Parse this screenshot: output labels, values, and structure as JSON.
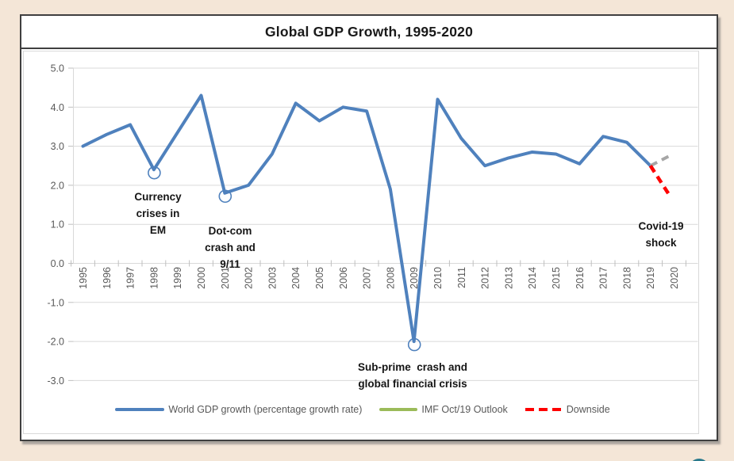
{
  "page": {
    "background_color": "#F4E6D7",
    "frame_border_color": "#3f3f3f"
  },
  "chart": {
    "title": "Global GDP Growth, 1995-2020"
  },
  "chart_data": {
    "type": "line",
    "title": "Global GDP Growth, 1995-2020",
    "xlabel": "",
    "ylabel": "",
    "ylim": [
      -3.0,
      5.0
    ],
    "ytick_step": 1.0,
    "ytick_labels": [
      "5.0",
      "4.0",
      "3.0",
      "2.0",
      "1.0",
      "0.0",
      "-1.0",
      "-2.0",
      "-3.0"
    ],
    "grid": true,
    "gridline_color": "#d9d9d9",
    "axis_label_color": "#595959",
    "legend_position": "bottom",
    "categories": [
      1995,
      1996,
      1997,
      1998,
      1999,
      2000,
      2001,
      2002,
      2003,
      2004,
      2005,
      2006,
      2007,
      2008,
      2009,
      2010,
      2011,
      2012,
      2013,
      2014,
      2015,
      2016,
      2017,
      2018,
      2019,
      2020
    ],
    "series": [
      {
        "name": "World GDP growth (percentage growth rate)",
        "color": "#4F81BD",
        "style": "solid",
        "years": [
          1995,
          1996,
          1997,
          1998,
          1999,
          2000,
          2001,
          2002,
          2003,
          2004,
          2005,
          2006,
          2007,
          2008,
          2009,
          2010,
          2011,
          2012,
          2013,
          2014,
          2015,
          2016,
          2017,
          2018,
          2019
        ],
        "values": [
          3.0,
          3.3,
          3.55,
          2.4,
          3.35,
          4.3,
          1.8,
          2.0,
          2.8,
          4.1,
          3.65,
          4.0,
          3.9,
          1.9,
          -2.0,
          4.2,
          3.2,
          2.5,
          2.7,
          2.85,
          2.8,
          2.55,
          3.25,
          3.1,
          2.5
        ]
      },
      {
        "name": "IMF Oct/19 Outlook",
        "legend_color": "#9BBB59",
        "plot_color": "#A6A6A6",
        "style": "dashed",
        "years": [
          2019,
          2020
        ],
        "values": [
          2.5,
          2.75
        ]
      },
      {
        "name": "Downside",
        "legend_color": "#FE0000",
        "plot_color": "#FE0000",
        "style": "dashed",
        "years": [
          2019,
          2020
        ],
        "values": [
          2.5,
          1.75
        ]
      }
    ],
    "markers": [
      {
        "year": 1998,
        "value": 2.4,
        "shape": "open-circle"
      },
      {
        "year": 2001,
        "value": 1.8,
        "shape": "open-circle"
      },
      {
        "year": 2009,
        "value": -2.0,
        "shape": "open-circle"
      }
    ]
  },
  "annotations": [
    {
      "id": "currency-crises",
      "lines": [
        "Currency",
        "crises in",
        "EM"
      ]
    },
    {
      "id": "dotcom-crash",
      "lines": [
        "Dot-com",
        "crash and",
        "9/11"
      ]
    },
    {
      "id": "subprime-crash",
      "lines": [
        "Sub-prime  crash and",
        "global financial crisis"
      ]
    },
    {
      "id": "covid-shock",
      "lines": [
        "Covid-19",
        "shock"
      ]
    }
  ]
}
